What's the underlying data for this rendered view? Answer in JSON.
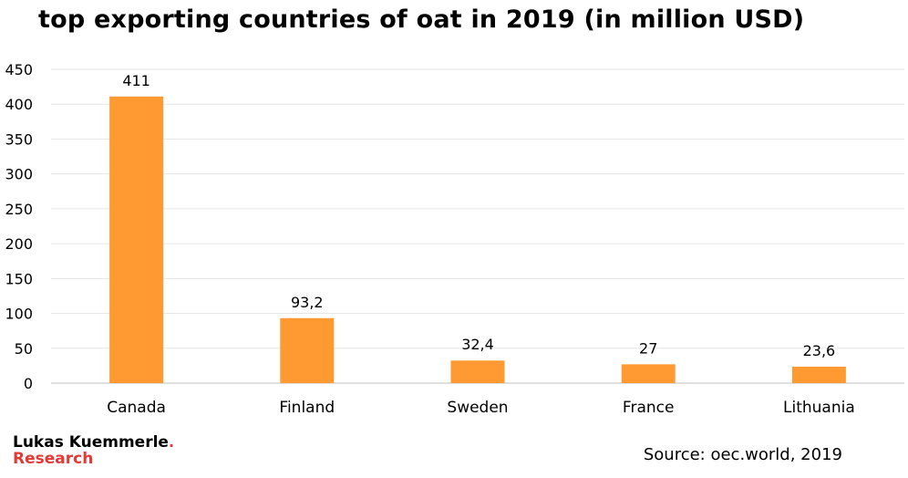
{
  "brand": {
    "name": "Lukas Kuemmerle",
    "dot": ".",
    "research": "Research",
    "accent_color": "#e53935"
  },
  "source": "Source: oec.world, 2019",
  "chart_data": {
    "type": "bar",
    "title": "top exporting countries of oat in 2019 (in million USD)",
    "categories": [
      "Canada",
      "Finland",
      "Sweden",
      "France",
      "Lithuania"
    ],
    "values": [
      411,
      93.2,
      32.4,
      27,
      23.6
    ],
    "value_labels": [
      "411",
      "93,2",
      "32,4",
      "27",
      "23,6"
    ],
    "ylim": [
      0,
      450
    ],
    "yticks": [
      0,
      50,
      100,
      150,
      200,
      250,
      300,
      350,
      400,
      450
    ],
    "xlabel": "",
    "ylabel": "",
    "grid": true,
    "legend": "none",
    "bar_color": "#ff9a33",
    "grid_color": "#e6e6e6"
  }
}
